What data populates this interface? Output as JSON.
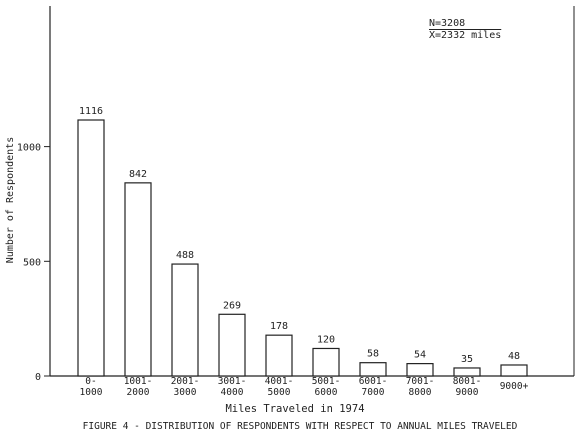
{
  "chart_data": {
    "type": "bar",
    "categories": [
      [
        "0-",
        "1000"
      ],
      [
        "1001-",
        "2000"
      ],
      [
        "2001-",
        "3000"
      ],
      [
        "3001-",
        "4000"
      ],
      [
        "4001-",
        "5000"
      ],
      [
        "5001-",
        "6000"
      ],
      [
        "6001-",
        "7000"
      ],
      [
        "7001-",
        "8000"
      ],
      [
        "8001-",
        "9000"
      ],
      [
        "9000+"
      ]
    ],
    "values": [
      1116,
      842,
      488,
      269,
      178,
      120,
      58,
      54,
      35,
      48
    ],
    "value_labels": [
      "1116",
      "842",
      "488",
      "269",
      "178",
      "120",
      "58",
      "54",
      "35",
      "48"
    ],
    "ylim": [
      0,
      1250
    ],
    "yticks": [
      0,
      500,
      1000
    ],
    "ytick_labels": [
      "0",
      "500",
      "1000"
    ],
    "xlabel": "Miles Traveled in 1974",
    "ylabel": "Number of Respondents",
    "caption": "FIGURE 4 - DISTRIBUTION OF RESPONDENTS WITH RESPECT TO ANNUAL MILES TRAVELED",
    "annotations": [
      "N=3208",
      "X=2332 miles"
    ],
    "grid": false
  }
}
